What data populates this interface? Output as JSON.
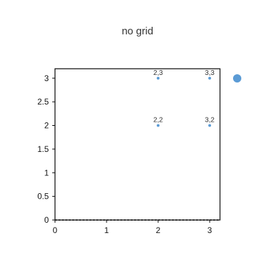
{
  "chart_data": {
    "type": "scatter",
    "title": "no grid",
    "xlabel": "",
    "ylabel": "",
    "xlim": [
      0,
      3.2
    ],
    "ylim": [
      0,
      3.2
    ],
    "x_ticks": [
      "0",
      "1",
      "2",
      "3"
    ],
    "y_ticks": [
      "0",
      "0.5",
      "1",
      "1.5",
      "2",
      "2.5",
      "3"
    ],
    "grid": false,
    "legend": "top-right",
    "series": [
      {
        "color": "#5b9bd5",
        "points": [
          {
            "x": 2,
            "y": 3,
            "label": "2,3"
          },
          {
            "x": 3,
            "y": 3,
            "label": "3,3"
          },
          {
            "x": 2,
            "y": 2,
            "label": "2,2"
          },
          {
            "x": 3,
            "y": 2,
            "label": "3,2"
          }
        ]
      }
    ]
  }
}
